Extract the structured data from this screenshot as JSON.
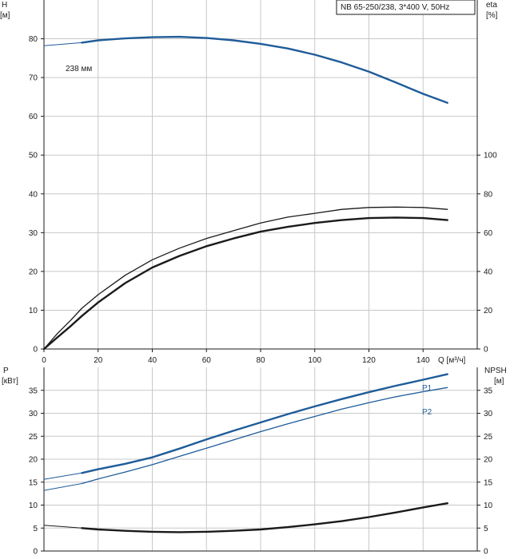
{
  "header": {
    "pump_label": "NB 65-250/238, 3*400 V, 50Hz"
  },
  "chart_data": [
    {
      "type": "line",
      "id": "head_eta",
      "left_axis": {
        "label_line1": "H",
        "label_line2": "[м]",
        "ylim": [
          0,
          90
        ],
        "ticks": [
          0,
          10,
          20,
          30,
          40,
          50,
          60,
          70,
          80
        ]
      },
      "right_axis": {
        "label_line1": "eta",
        "label_line2": "[%]",
        "ylim": [
          0,
          180
        ],
        "ticks": [
          0,
          20,
          40,
          60,
          80,
          100
        ]
      },
      "x_axis": {
        "label": "Q [м³/ч]",
        "xlim": [
          0,
          160
        ],
        "ticks": [
          0,
          20,
          40,
          60,
          80,
          100,
          120,
          140
        ]
      },
      "grid": true,
      "series": [
        {
          "key": "head",
          "axis": "left",
          "color": "#1f5c99",
          "label": "238 мм",
          "thin_x": [
            0,
            14
          ],
          "thin_y": [
            78.2,
            79.0
          ],
          "x": [
            14,
            20,
            30,
            40,
            50,
            60,
            70,
            80,
            90,
            100,
            110,
            120,
            130,
            140,
            149
          ],
          "y": [
            79.0,
            79.6,
            80.1,
            80.4,
            80.5,
            80.2,
            79.6,
            78.7,
            77.5,
            75.9,
            73.9,
            71.5,
            68.7,
            65.8,
            63.5
          ]
        },
        {
          "key": "eta_thin",
          "axis": "right",
          "color": "#1a1a1a",
          "x": [
            0,
            5,
            10,
            14,
            20,
            30,
            40,
            50,
            60,
            70,
            80,
            90,
            100,
            110,
            120,
            130,
            140,
            149
          ],
          "y": [
            0,
            8,
            15,
            21,
            28,
            38,
            46,
            52,
            57,
            61,
            65,
            68,
            70,
            72,
            73,
            73.2,
            73,
            72
          ]
        },
        {
          "key": "eta_bold",
          "axis": "right",
          "color": "#1a1a1a",
          "x": [
            0,
            5,
            10,
            14,
            20,
            30,
            40,
            50,
            60,
            70,
            80,
            90,
            100,
            110,
            120,
            130,
            140,
            149
          ],
          "y": [
            0,
            6,
            12,
            17,
            24,
            34,
            42,
            48,
            53,
            57,
            60.5,
            63,
            65,
            66.5,
            67.5,
            67.8,
            67.5,
            66.5
          ]
        }
      ]
    },
    {
      "type": "line",
      "id": "power_npsh",
      "left_axis": {
        "label_line1": "P",
        "label_line2": "[кВт]",
        "ylim": [
          0,
          40
        ],
        "ticks": [
          0,
          5,
          10,
          15,
          20,
          25,
          30,
          35
        ]
      },
      "right_axis": {
        "label_line1": "NPSH",
        "label_line2": "[м]",
        "ylim": [
          0,
          40
        ],
        "ticks": [
          0,
          5,
          10,
          15,
          20,
          25,
          30,
          35
        ]
      },
      "x_axis": {
        "xlim": [
          0,
          160
        ]
      },
      "grid": true,
      "series": [
        {
          "key": "P1",
          "name": "P1",
          "axis": "left",
          "color": "#1f5c99",
          "thin_x": [
            0,
            14
          ],
          "thin_y": [
            15.6,
            17.0
          ],
          "x": [
            14,
            20,
            30,
            40,
            50,
            60,
            70,
            80,
            90,
            100,
            110,
            120,
            130,
            140,
            149
          ],
          "y": [
            17.0,
            17.8,
            19.0,
            20.4,
            22.3,
            24.3,
            26.2,
            28.0,
            29.8,
            31.5,
            33.1,
            34.6,
            36.0,
            37.3,
            38.5
          ]
        },
        {
          "key": "P2",
          "name": "P2",
          "axis": "left",
          "color": "#1f5c99",
          "thin_x": [
            0,
            14
          ],
          "thin_y": [
            13.2,
            14.7
          ],
          "x": [
            14,
            20,
            30,
            40,
            50,
            60,
            70,
            80,
            90,
            100,
            110,
            120,
            130,
            140,
            149
          ],
          "y": [
            14.7,
            15.7,
            17.2,
            18.8,
            20.6,
            22.4,
            24.2,
            26.0,
            27.7,
            29.3,
            30.9,
            32.3,
            33.6,
            34.7,
            35.6
          ]
        },
        {
          "key": "NPSH",
          "axis": "right",
          "color": "#1a1a1a",
          "thin_x": [
            0,
            14
          ],
          "thin_y": [
            5.6,
            5.0
          ],
          "x": [
            14,
            20,
            30,
            40,
            50,
            60,
            70,
            80,
            90,
            100,
            110,
            120,
            130,
            140,
            149
          ],
          "y": [
            5.0,
            4.7,
            4.4,
            4.2,
            4.1,
            4.2,
            4.4,
            4.7,
            5.2,
            5.8,
            6.5,
            7.4,
            8.4,
            9.5,
            10.4
          ]
        }
      ]
    }
  ]
}
